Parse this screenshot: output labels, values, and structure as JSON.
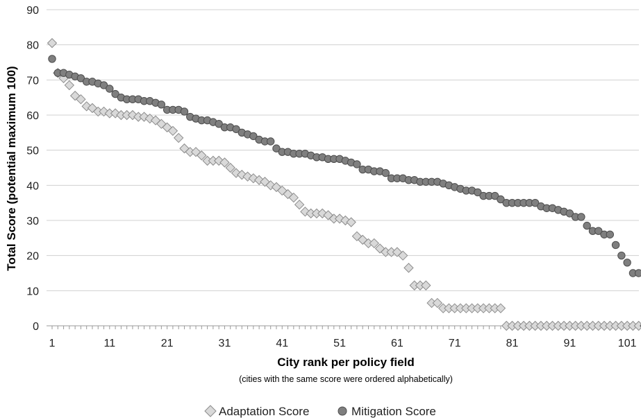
{
  "chart_data": {
    "type": "scatter",
    "title": "",
    "xlabel": "City rank per policy field",
    "xnote": "(cities with the same score were ordered alphabetically)",
    "ylabel": "Total Score (potential maximum 100)",
    "xlim": [
      1,
      104
    ],
    "ylim": [
      0,
      90
    ],
    "xticks": [
      "1",
      "11",
      "21",
      "31",
      "41",
      "51",
      "61",
      "71",
      "81",
      "91",
      "101"
    ],
    "yticks": [
      "0",
      "10",
      "20",
      "30",
      "40",
      "50",
      "60",
      "70",
      "80",
      "90"
    ],
    "grid": "horizontal",
    "legend": "bottom",
    "series": [
      {
        "name": "Adaptation Score",
        "marker": "diamond",
        "color": "#d9d9d9",
        "stroke": "#8c8c8c",
        "x": [
          1,
          2,
          3,
          4,
          5,
          6,
          7,
          8,
          9,
          10,
          11,
          12,
          13,
          14,
          15,
          16,
          17,
          18,
          19,
          20,
          21,
          22,
          23,
          24,
          25,
          26,
          27,
          28,
          29,
          30,
          31,
          32,
          33,
          34,
          35,
          36,
          37,
          38,
          39,
          40,
          41,
          42,
          43,
          44,
          45,
          46,
          47,
          48,
          49,
          50,
          51,
          52,
          53,
          54,
          55,
          56,
          57,
          58,
          59,
          60,
          61,
          62,
          63,
          64,
          65,
          66,
          67,
          68,
          69,
          70,
          71,
          72,
          73,
          74,
          75,
          76,
          77,
          78,
          79,
          80,
          81,
          82,
          83,
          84,
          85,
          86,
          87,
          88,
          89,
          90,
          91,
          92,
          93,
          94,
          95,
          96,
          97,
          98,
          99,
          100,
          101,
          102,
          103,
          104
        ],
        "values": [
          80.5,
          72,
          70.5,
          68.5,
          65.5,
          64.5,
          62.5,
          62,
          61,
          61,
          60.5,
          60.5,
          60,
          60,
          60,
          59.5,
          59.5,
          59,
          58.5,
          57.5,
          56.5,
          55.5,
          53.5,
          50.5,
          49.5,
          49.5,
          48.5,
          47,
          47,
          47,
          46.5,
          45,
          43.5,
          43,
          42.5,
          42,
          41.5,
          41,
          40,
          39.5,
          38.5,
          37.5,
          36.5,
          34.5,
          32.5,
          32,
          32,
          32,
          31.5,
          30.5,
          30.5,
          30,
          29.5,
          25.5,
          24.5,
          23.5,
          23.5,
          22,
          21,
          21,
          21,
          20,
          16.5,
          11.5,
          11.5,
          11.5,
          6.5,
          6.5,
          5,
          5,
          5,
          5,
          5,
          5,
          5,
          5,
          5,
          5,
          5,
          0,
          0,
          0,
          0,
          0,
          0,
          0,
          0,
          0,
          0,
          0,
          0,
          0,
          0,
          0,
          0,
          0,
          0,
          0,
          0,
          0,
          0,
          0,
          0,
          0
        ]
      },
      {
        "name": "Mitigation Score",
        "marker": "circle",
        "color": "#7f7f7f",
        "stroke": "#4d4d4d",
        "x": [
          1,
          2,
          3,
          4,
          5,
          6,
          7,
          8,
          9,
          10,
          11,
          12,
          13,
          14,
          15,
          16,
          17,
          18,
          19,
          20,
          21,
          22,
          23,
          24,
          25,
          26,
          27,
          28,
          29,
          30,
          31,
          32,
          33,
          34,
          35,
          36,
          37,
          38,
          39,
          40,
          41,
          42,
          43,
          44,
          45,
          46,
          47,
          48,
          49,
          50,
          51,
          52,
          53,
          54,
          55,
          56,
          57,
          58,
          59,
          60,
          61,
          62,
          63,
          64,
          65,
          66,
          67,
          68,
          69,
          70,
          71,
          72,
          73,
          74,
          75,
          76,
          77,
          78,
          79,
          80,
          81,
          82,
          83,
          84,
          85,
          86,
          87,
          88,
          89,
          90,
          91,
          92,
          93,
          94,
          95,
          96,
          97,
          98,
          99,
          100,
          101,
          102,
          103,
          104
        ],
        "values": [
          76,
          72,
          72,
          71.5,
          71,
          70.5,
          69.5,
          69.5,
          69,
          68.5,
          67.5,
          66,
          65,
          64.5,
          64.5,
          64.5,
          64,
          64,
          63.5,
          63,
          61.5,
          61.5,
          61.5,
          61,
          59.5,
          59,
          58.5,
          58.5,
          58,
          57.5,
          56.5,
          56.5,
          56,
          55,
          54.5,
          54,
          53,
          52.5,
          52.5,
          50.5,
          49.5,
          49.5,
          49,
          49,
          49,
          48.5,
          48,
          48,
          47.5,
          47.5,
          47.5,
          47,
          46.5,
          46,
          44.5,
          44.5,
          44,
          44,
          43.5,
          42,
          42,
          42,
          41.5,
          41.5,
          41,
          41,
          41,
          41,
          40.5,
          40,
          39.5,
          39,
          38.5,
          38.5,
          38,
          37,
          37,
          37,
          36,
          35,
          35,
          35,
          35,
          35,
          35,
          34,
          33.5,
          33.5,
          33,
          32.5,
          32,
          31,
          31,
          28.5,
          27,
          27,
          26,
          26,
          23,
          20,
          18,
          15,
          15,
          0
        ]
      }
    ]
  }
}
